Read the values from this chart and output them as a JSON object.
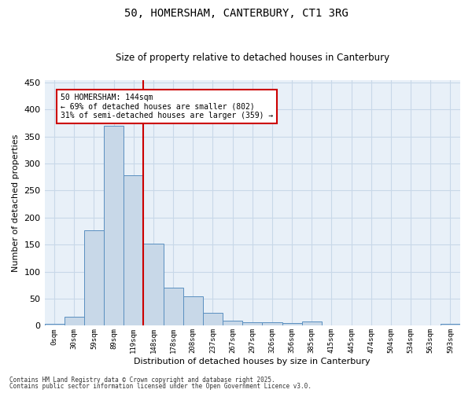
{
  "title1": "50, HOMERSHAM, CANTERBURY, CT1 3RG",
  "title2": "Size of property relative to detached houses in Canterbury",
  "xlabel": "Distribution of detached houses by size in Canterbury",
  "ylabel": "Number of detached properties",
  "bar_labels": [
    "0sqm",
    "30sqm",
    "59sqm",
    "89sqm",
    "119sqm",
    "148sqm",
    "178sqm",
    "208sqm",
    "237sqm",
    "267sqm",
    "297sqm",
    "326sqm",
    "356sqm",
    "385sqm",
    "415sqm",
    "445sqm",
    "474sqm",
    "504sqm",
    "534sqm",
    "563sqm",
    "593sqm"
  ],
  "bar_values": [
    3,
    16,
    177,
    370,
    278,
    152,
    70,
    54,
    24,
    9,
    7,
    6,
    5,
    8,
    1,
    0,
    1,
    0,
    0,
    0,
    3
  ],
  "bar_color": "#c8d8e8",
  "bar_edge_color": "#5a8fc0",
  "grid_color": "#c8d8e8",
  "bg_color": "#e8f0f8",
  "vline_color": "#cc0000",
  "vline_pos": 4.5,
  "annotation_text": "50 HOMERSHAM: 144sqm\n← 69% of detached houses are smaller (802)\n31% of semi-detached houses are larger (359) →",
  "annotation_box_edgecolor": "#cc0000",
  "footer1": "Contains HM Land Registry data © Crown copyright and database right 2025.",
  "footer2": "Contains public sector information licensed under the Open Government Licence v3.0.",
  "ylim": [
    0,
    455
  ],
  "yticks": [
    0,
    50,
    100,
    150,
    200,
    250,
    300,
    350,
    400,
    450
  ]
}
